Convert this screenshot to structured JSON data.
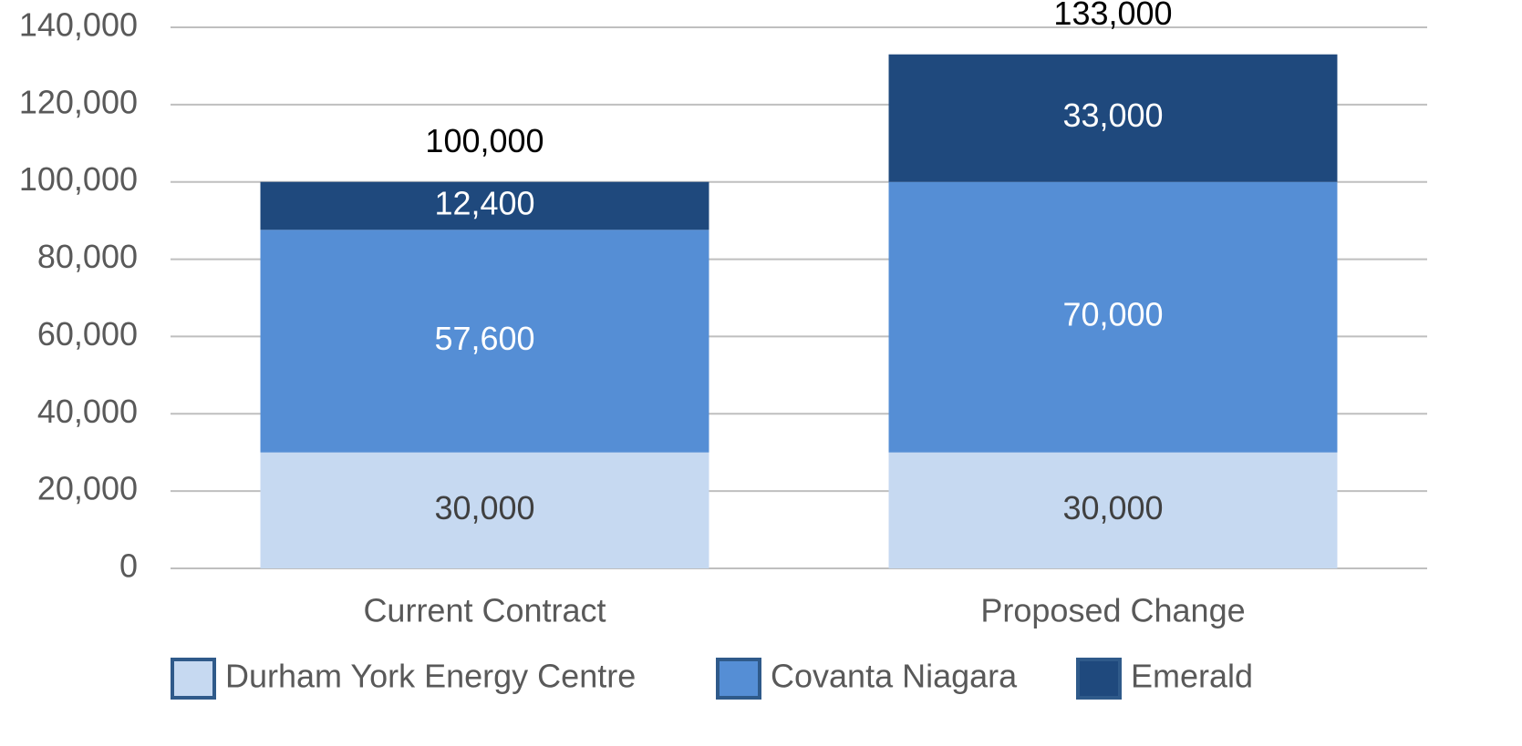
{
  "chart_data": {
    "type": "stacked_bar",
    "categories": [
      "Current Contract",
      "Proposed Change"
    ],
    "series": [
      {
        "name": "Durham York Energy Centre",
        "color": "#c6d9f1",
        "label_color": "#404040",
        "values": [
          30000,
          30000
        ],
        "value_labels": [
          "30,000",
          "30,000"
        ]
      },
      {
        "name": "Covanta Niagara",
        "color": "#558ed5",
        "label_color": "#ffffff",
        "values": [
          57600,
          70000
        ],
        "value_labels": [
          "57,600",
          "70,000"
        ]
      },
      {
        "name": "Emerald",
        "color": "#1f497d",
        "label_color": "#ffffff",
        "values": [
          12400,
          33000
        ],
        "value_labels": [
          "12,400",
          "33,000"
        ]
      }
    ],
    "totals": [
      100000,
      133000
    ],
    "total_labels": [
      "100,000",
      "133,000"
    ],
    "ylim": [
      0,
      140000
    ],
    "yticks": [
      0,
      {
        "value": 20000,
        "label": "20,000"
      },
      {
        "value": 40000,
        "label": "40,000"
      },
      {
        "value": 60000,
        "label": "60,000"
      },
      {
        "value": 80000,
        "label": "80,000"
      },
      {
        "value": 100000,
        "label": "100,000"
      },
      {
        "value": 120000,
        "label": "120,000"
      },
      {
        "value": 140000,
        "label": "140,000"
      }
    ],
    "grid": true,
    "legend": "bottom"
  }
}
